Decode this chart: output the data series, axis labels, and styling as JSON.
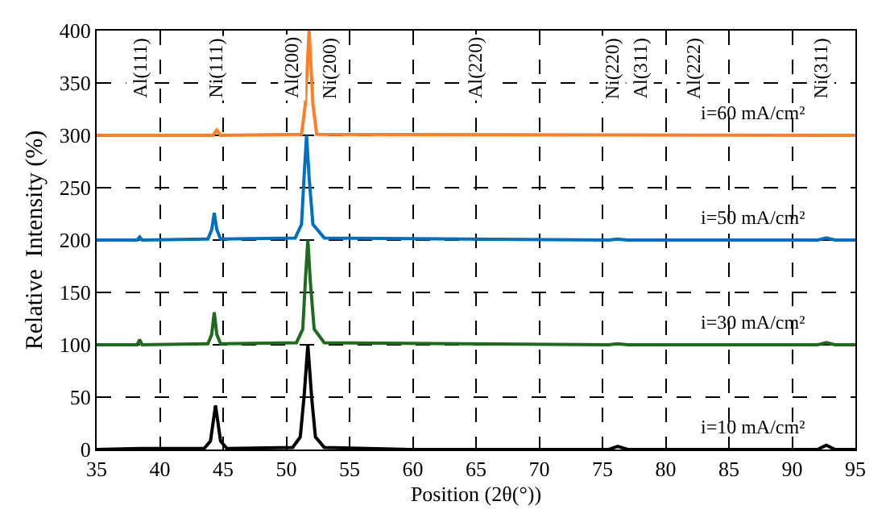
{
  "chart_data": {
    "type": "line",
    "xlabel": "Position (2θ(°))",
    "ylabel": "Relative  Intensity (%)",
    "xlim": [
      35,
      95
    ],
    "xticks": [
      35,
      40,
      45,
      50,
      55,
      60,
      65,
      70,
      75,
      80,
      85,
      90,
      95
    ],
    "ylim": [
      0,
      400
    ],
    "yticks": [
      0,
      50,
      100,
      150,
      200,
      250,
      300,
      350,
      400
    ],
    "grid": true,
    "legend": false,
    "line_style": "solid",
    "series": [
      {
        "name": "i=10 mA/cm²",
        "color": "#000000",
        "x": [
          35,
          38.4,
          43.5,
          44.0,
          44.2,
          44.4,
          44.6,
          44.8,
          45.3,
          50.5,
          51.1,
          51.4,
          51.7,
          52.0,
          52.3,
          53,
          60,
          75.5,
          76.2,
          77,
          92,
          92.7,
          93.4,
          95
        ],
        "values": [
          0,
          1,
          1,
          8,
          25,
          42,
          25,
          8,
          1,
          2,
          12,
          50,
          100,
          50,
          12,
          2,
          0,
          0,
          3,
          0,
          0,
          4,
          0,
          0
        ]
      },
      {
        "name": "i=30 mA/cm²",
        "color": "#1e6b1e",
        "x": [
          35,
          38.2,
          38.4,
          38.6,
          43.8,
          44.1,
          44.3,
          44.5,
          44.8,
          50.8,
          51.3,
          51.5,
          51.7,
          51.9,
          52.2,
          53,
          75.5,
          76.2,
          77,
          92,
          92.7,
          93.4,
          95
        ],
        "values": [
          100,
          100,
          105,
          100,
          101,
          110,
          131,
          110,
          101,
          102,
          115,
          160,
          200,
          160,
          115,
          102,
          100,
          101,
          100,
          100,
          102,
          100,
          100
        ]
      },
      {
        "name": "i=50 mA/cm²",
        "color": "#0070c0",
        "x": [
          35,
          38.2,
          38.4,
          38.6,
          43.8,
          44.1,
          44.3,
          44.5,
          44.8,
          50.7,
          51.2,
          51.4,
          51.6,
          51.8,
          52.1,
          53,
          75.5,
          76.2,
          77,
          92,
          92.7,
          93.4,
          95
        ],
        "values": [
          200,
          200,
          203,
          200,
          201,
          210,
          226,
          210,
          201,
          202,
          215,
          260,
          300,
          260,
          215,
          202,
          200,
          201,
          200,
          200,
          202,
          200,
          200
        ]
      },
      {
        "name": "i=60 mA/cm²",
        "color": "#ff7f27",
        "x": [
          35,
          44.2,
          44.5,
          44.8,
          51.2,
          51.5,
          51.8,
          52.1,
          52.4,
          95
        ],
        "values": [
          300,
          300,
          305,
          300,
          301,
          330,
          400,
          330,
          301,
          300
        ]
      }
    ],
    "annotations": [
      "Al(111)",
      "Ni(111)",
      "Al(200)",
      "Ni(200)",
      "Al(220)",
      "Ni(220)",
      "Al(311)",
      "Al(222)",
      "Ni(311)"
    ]
  }
}
